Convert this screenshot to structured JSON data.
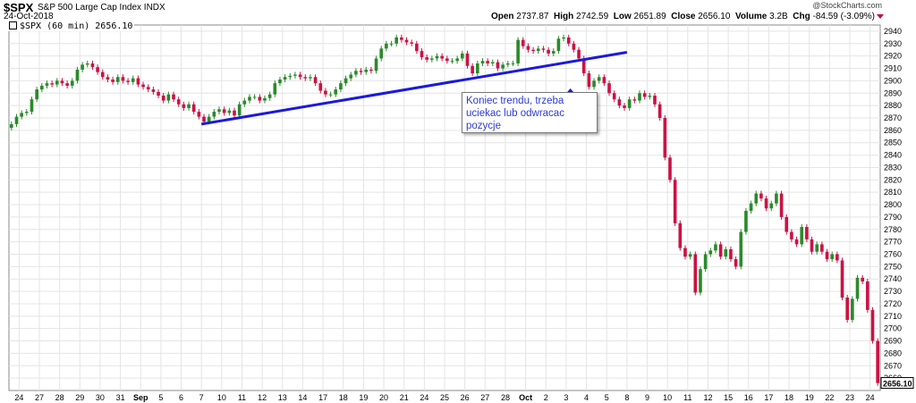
{
  "header": {
    "symbol": "$SPX",
    "description": "S&P 500 Large Cap Index",
    "exchange": "INDX",
    "date": "24-Oct-2018",
    "watermark": "@StockCharts.com",
    "open_label": "Open",
    "open_value": "2737.87",
    "high_label": "High",
    "high_value": "2742.59",
    "low_label": "Low",
    "low_value": "2651.89",
    "close_label": "Close",
    "close_value": "2656.10",
    "volume_label": "Volume",
    "volume_value": "3.2B",
    "chg_label": "Chg",
    "chg_value": "-84.59 (-3.09%)"
  },
  "legend": {
    "text": "$SPX (60 min) 2656.10"
  },
  "annotation": {
    "text": "Koniec trendu, trzeba uciekac lub odwracac pozycje"
  },
  "colors": {
    "up": "#2a8a2a",
    "down": "#cc1144",
    "trendline": "#1a1adb",
    "arrow": "#1a1adb",
    "grid": "#e4e4e4",
    "last_price_box": "#ffffff"
  },
  "chart_data": {
    "type": "candlestick",
    "interval": "60 min",
    "title": "$SPX S&P 500 Large Cap Index INDX",
    "ylim": [
      2650,
      2945
    ],
    "y_ticks": [
      2660,
      2670,
      2680,
      2690,
      2700,
      2710,
      2720,
      2730,
      2740,
      2750,
      2760,
      2770,
      2780,
      2790,
      2800,
      2810,
      2820,
      2830,
      2840,
      2850,
      2860,
      2870,
      2880,
      2890,
      2900,
      2910,
      2920,
      2930,
      2940
    ],
    "last_price": "2656.10",
    "x_ticks": [
      "24",
      "27",
      "28",
      "29",
      "30",
      "31",
      "Sep",
      "5",
      "6",
      "7",
      "10",
      "11",
      "12",
      "13",
      "14",
      "17",
      "18",
      "19",
      "20",
      "21",
      "24",
      "25",
      "26",
      "27",
      "28",
      "Oct",
      "2",
      "3",
      "4",
      "5",
      "8",
      "9",
      "10",
      "11",
      "12",
      "15",
      "16",
      "17",
      "18",
      "19",
      "22",
      "23",
      "24"
    ],
    "sessions": [
      {
        "label": "24",
        "c": [
          2865,
          2871,
          2874,
          2875
        ]
      },
      {
        "label": "27",
        "c": [
          2885,
          2893,
          2896,
          2898
        ]
      },
      {
        "label": "28",
        "c": [
          2897,
          2900,
          2898,
          2896
        ]
      },
      {
        "label": "29",
        "c": [
          2900,
          2909,
          2913,
          2914
        ]
      },
      {
        "label": "30",
        "c": [
          2911,
          2907,
          2903,
          2901
        ]
      },
      {
        "label": "31",
        "c": [
          2899,
          2903,
          2900,
          2899
        ]
      },
      {
        "label": "Sep",
        "c": [
          2902,
          2897,
          2895,
          2893
        ]
      },
      {
        "label": "5",
        "c": [
          2891,
          2888,
          2884,
          2889
        ]
      },
      {
        "label": "6",
        "c": [
          2885,
          2881,
          2878,
          2881
        ]
      },
      {
        "label": "7",
        "c": [
          2875,
          2871,
          2867,
          2871
        ]
      },
      {
        "label": "10",
        "c": [
          2875,
          2877,
          2874,
          2876
        ]
      },
      {
        "label": "11",
        "c": [
          2872,
          2881,
          2884,
          2887
        ]
      },
      {
        "label": "12",
        "c": [
          2887,
          2884,
          2886,
          2889
        ]
      },
      {
        "label": "13",
        "c": [
          2898,
          2901,
          2903,
          2904
        ]
      },
      {
        "label": "14",
        "c": [
          2905,
          2903,
          2902,
          2903
        ]
      },
      {
        "label": "17",
        "c": [
          2898,
          2892,
          2889,
          2889
        ]
      },
      {
        "label": "18",
        "c": [
          2893,
          2898,
          2902,
          2905
        ]
      },
      {
        "label": "19",
        "c": [
          2908,
          2907,
          2909,
          2908
        ]
      },
      {
        "label": "20",
        "c": [
          2918,
          2926,
          2930,
          2930
        ]
      },
      {
        "label": "21",
        "c": [
          2935,
          2933,
          2931,
          2930
        ]
      },
      {
        "label": "24",
        "c": [
          2924,
          2919,
          2917,
          2918
        ]
      },
      {
        "label": "25",
        "c": [
          2920,
          2918,
          2916,
          2916
        ]
      },
      {
        "label": "26",
        "c": [
          2918,
          2922,
          2912,
          2906
        ]
      },
      {
        "label": "27",
        "c": [
          2914,
          2916,
          2914,
          2915
        ]
      },
      {
        "label": "28",
        "c": [
          2910,
          2913,
          2914,
          2914
        ]
      },
      {
        "label": "Oct",
        "c": [
          2933,
          2928,
          2925,
          2924
        ]
      },
      {
        "label": "2",
        "c": [
          2926,
          2925,
          2922,
          2924
        ]
      },
      {
        "label": "3",
        "c": [
          2934,
          2935,
          2930,
          2925
        ]
      },
      {
        "label": "4",
        "c": [
          2918,
          2906,
          2895,
          2900
        ]
      },
      {
        "label": "5",
        "c": [
          2903,
          2898,
          2890,
          2885
        ]
      },
      {
        "label": "8",
        "c": [
          2880,
          2878,
          2885,
          2884
        ]
      },
      {
        "label": "9",
        "c": [
          2890,
          2887,
          2888,
          2881
        ]
      },
      {
        "label": "10",
        "c": [
          2870,
          2838,
          2820,
          2785
        ]
      },
      {
        "label": "11",
        "c": [
          2765,
          2758,
          2760,
          2729
        ]
      },
      {
        "label": "12",
        "c": [
          2748,
          2760,
          2763,
          2768
        ]
      },
      {
        "label": "15",
        "c": [
          2758,
          2764,
          2756,
          2750
        ]
      },
      {
        "label": "16",
        "c": [
          2778,
          2795,
          2801,
          2809
        ]
      },
      {
        "label": "17",
        "c": [
          2805,
          2797,
          2801,
          2809
        ]
      },
      {
        "label": "18",
        "c": [
          2790,
          2778,
          2772,
          2768
        ]
      },
      {
        "label": "19",
        "c": [
          2782,
          2772,
          2762,
          2768
        ]
      },
      {
        "label": "22",
        "c": [
          2762,
          2756,
          2760,
          2755
        ]
      },
      {
        "label": "23",
        "c": [
          2725,
          2707,
          2724,
          2741
        ]
      },
      {
        "label": "24",
        "c": [
          2738,
          2715,
          2690,
          2656
        ]
      }
    ],
    "trendline": {
      "from": {
        "x": "7",
        "y": 2865
      },
      "to": {
        "x": "8",
        "y": 2923
      }
    },
    "arrow_marker": {
      "x": "4",
      "y": 2888,
      "direction": "up"
    }
  }
}
